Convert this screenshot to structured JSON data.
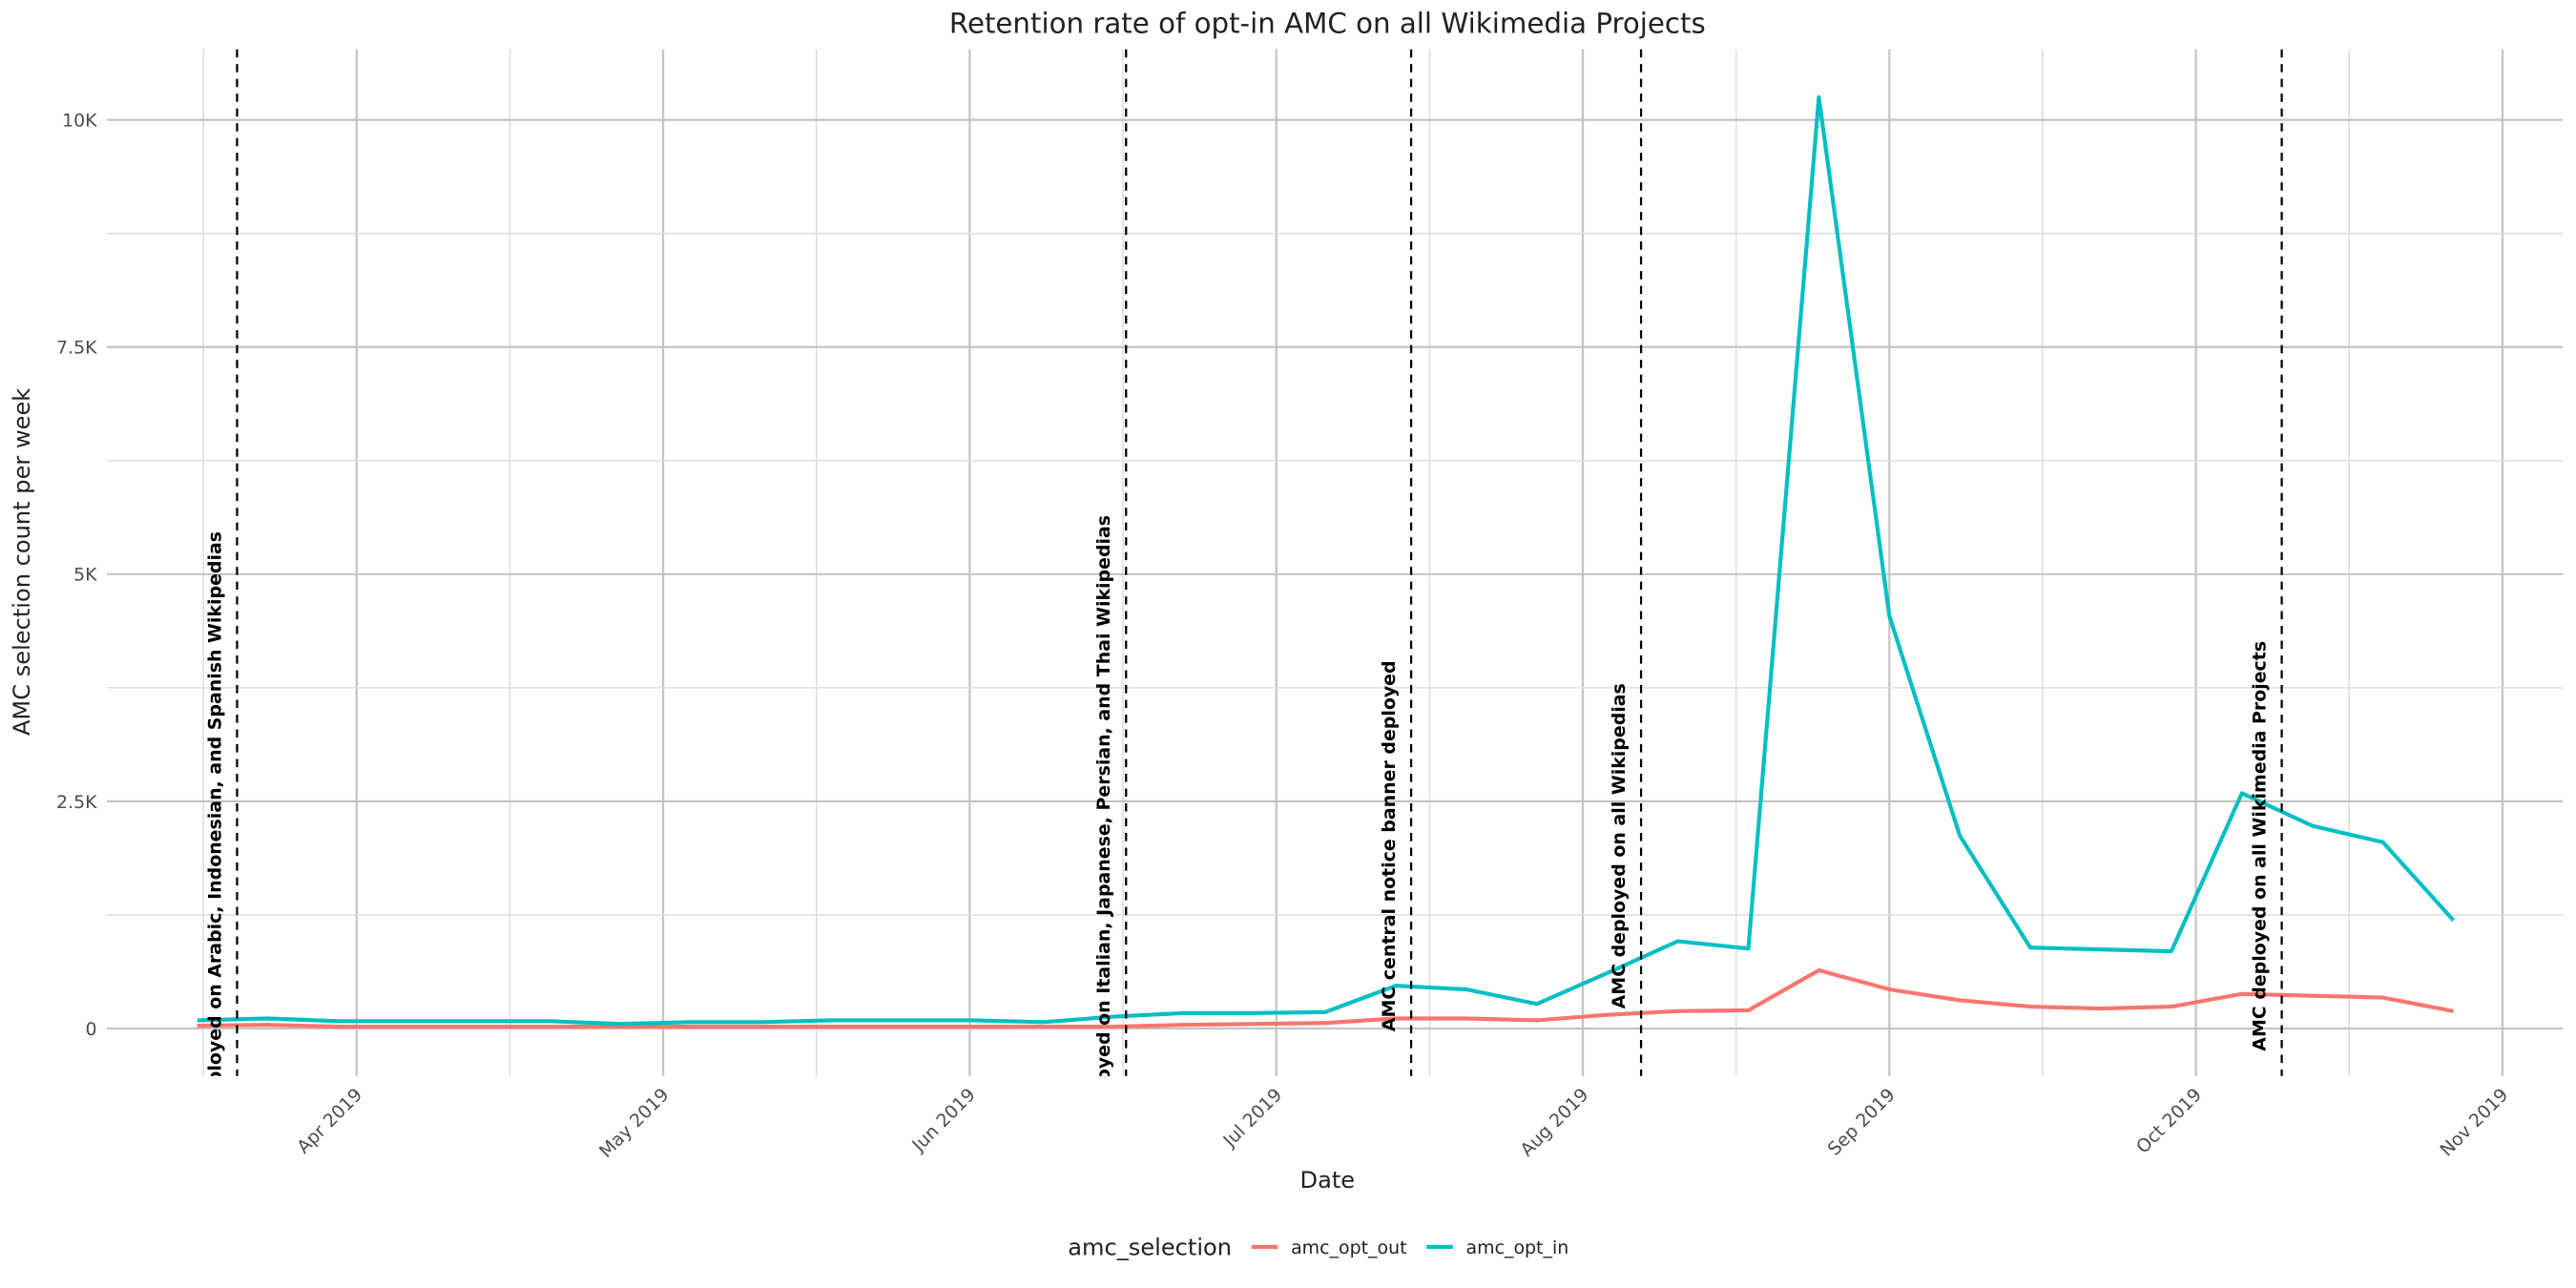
{
  "chart_data": {
    "type": "line",
    "title": "Retention rate of opt-in AMC on all Wikimedia Projects",
    "x_label": "Date",
    "y_label": "AMC selection count per week",
    "legend_title": "amc_selection",
    "legend_position": "bottom",
    "grid": true,
    "x": [
      3.48,
      3.71,
      3.94,
      4.17,
      4.4,
      4.63,
      4.86,
      5.09,
      5.32,
      5.55,
      5.78,
      6.01,
      6.24,
      6.47,
      6.7,
      6.93,
      7.16,
      7.39,
      7.62,
      7.85,
      8.08,
      8.31,
      8.54,
      8.77,
      9.0,
      9.23,
      9.46,
      9.69,
      9.92,
      10.15,
      10.38,
      10.61,
      10.84
    ],
    "xlim": [
      3.185,
      11.197
    ],
    "xticks": [
      {
        "value": 4,
        "label": "Apr 2019"
      },
      {
        "value": 5,
        "label": "May 2019"
      },
      {
        "value": 6,
        "label": "Jun 2019"
      },
      {
        "value": 7,
        "label": "Jul 2019"
      },
      {
        "value": 8,
        "label": "Aug 2019"
      },
      {
        "value": 9,
        "label": "Sep 2019"
      },
      {
        "value": 10,
        "label": "Oct 2019"
      },
      {
        "value": 11,
        "label": "Nov 2019"
      }
    ],
    "ylim": [
      -524,
      10777
    ],
    "yticks": [
      0,
      {
        "value": 2500,
        "label": "2.5K"
      },
      {
        "value": 5000,
        "label": "5K"
      },
      {
        "value": 7500,
        "label": "7.5K"
      },
      {
        "value": 10000,
        "label": "10K"
      }
    ],
    "series": [
      {
        "name": "amc_opt_out",
        "color": "#F8766D",
        "values": [
          30,
          40,
          20,
          20,
          20,
          20,
          20,
          20,
          20,
          20,
          20,
          20,
          20,
          20,
          40,
          50,
          60,
          110,
          110,
          90,
          150,
          190,
          200,
          640,
          430,
          310,
          240,
          220,
          240,
          380,
          360,
          340,
          190
        ]
      },
      {
        "name": "amc_opt_in",
        "color": "#00BFC4",
        "values": [
          90,
          110,
          80,
          80,
          80,
          80,
          50,
          70,
          70,
          90,
          90,
          90,
          70,
          130,
          170,
          170,
          180,
          470,
          430,
          270,
          610,
          960,
          880,
          10250,
          4540,
          2120,
          890,
          870,
          850,
          2590,
          2230,
          2050,
          1190
        ]
      }
    ],
    "annotations": [
      {
        "x": 3.61,
        "label": "AMC deployed on Arabic, Indonesian, and Spanish Wikipedias"
      },
      {
        "x": 6.51,
        "label": "AMC deployed on Italian, Japanese, Persian, and Thai Wikipedias"
      },
      {
        "x": 7.44,
        "label": "AMC central notice banner deployed"
      },
      {
        "x": 8.19,
        "label": "AMC deployed on all Wikipedias"
      },
      {
        "x": 10.28,
        "label": "AMC deployed on all Wikimedia Projects"
      }
    ]
  }
}
